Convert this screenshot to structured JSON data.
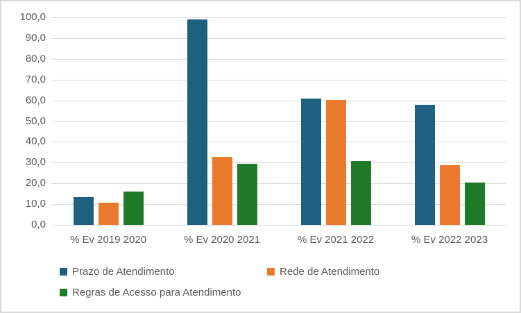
{
  "chart_data": {
    "type": "bar",
    "title": "",
    "xlabel": "",
    "ylabel": "",
    "categories": [
      "% Ev 2019 2020",
      "% Ev 2020 2021",
      "% Ev 2021 2022",
      "% Ev 2022 2023"
    ],
    "series": [
      {
        "name": "Prazo de Atendimento",
        "color": "#1F5F80",
        "values": [
          13.4,
          99.0,
          61.0,
          57.9
        ]
      },
      {
        "name": "Rede de Atendimento",
        "color": "#E97A2E",
        "values": [
          10.7,
          32.7,
          60.2,
          28.9
        ]
      },
      {
        "name": "Regras de Acesso para Atendimento",
        "color": "#1F7B28",
        "values": [
          15.9,
          29.4,
          30.7,
          20.4
        ]
      }
    ],
    "ylim": [
      0,
      100
    ],
    "ytick_labels": [
      "100,0",
      "90,0",
      "80,0",
      "70,0",
      "60,0",
      "50,0",
      "40,0",
      "30,0",
      "20,0",
      "10,0",
      "0,0"
    ],
    "grid": true,
    "gridline_color": "#D9D9D9",
    "axis_text_color": "#595959",
    "background_color": "#FFFFFF",
    "border_color": "#D9D9D9",
    "legend_position": "bottom"
  }
}
